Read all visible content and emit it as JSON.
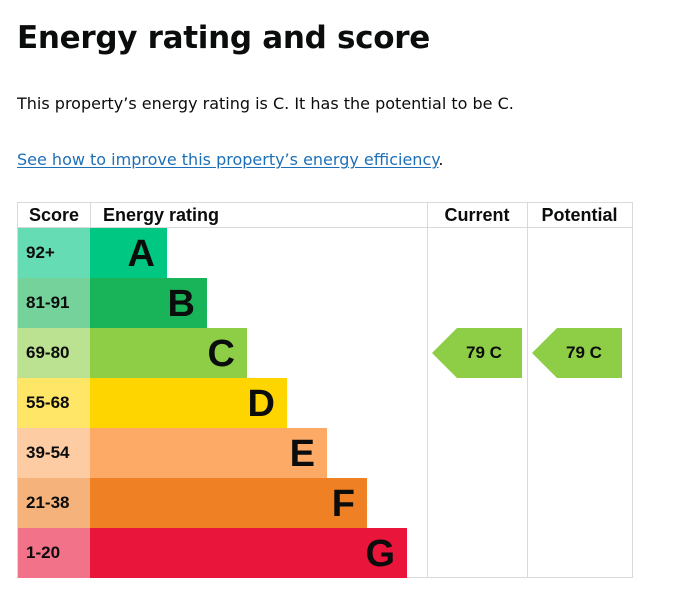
{
  "page": {
    "title": "Energy rating and score",
    "summary": "This property’s energy rating is C. It has the potential to be C.",
    "improve_link": "See how to improve this property’s energy efficiency",
    "improve_suffix": "."
  },
  "chart_data": {
    "type": "bar",
    "headers": {
      "score": "Score",
      "rating": "Energy rating",
      "current": "Current",
      "potential": "Potential"
    },
    "bands": [
      {
        "score": "92+",
        "letter": "A",
        "bar": "#00c781",
        "cell": "#66dcb4"
      },
      {
        "score": "81-91",
        "letter": "B",
        "bar": "#19b459",
        "cell": "#75d29b"
      },
      {
        "score": "69-80",
        "letter": "C",
        "bar": "#8dce46",
        "cell": "#bbe290"
      },
      {
        "score": "55-68",
        "letter": "D",
        "bar": "#ffd500",
        "cell": "#ffe666"
      },
      {
        "score": "39-54",
        "letter": "E",
        "bar": "#fcaa65",
        "cell": "#fdcca3"
      },
      {
        "score": "21-38",
        "letter": "F",
        "bar": "#ef8023",
        "cell": "#f5b37b"
      },
      {
        "score": "1-20",
        "letter": "G",
        "bar": "#e9153b",
        "cell": "#f27389"
      }
    ],
    "current": {
      "value": 79,
      "letter": "C",
      "label": "79  C",
      "color": "#8dce46"
    },
    "potential": {
      "value": 79,
      "letter": "C",
      "label": "79  C",
      "color": "#8dce46"
    }
  }
}
